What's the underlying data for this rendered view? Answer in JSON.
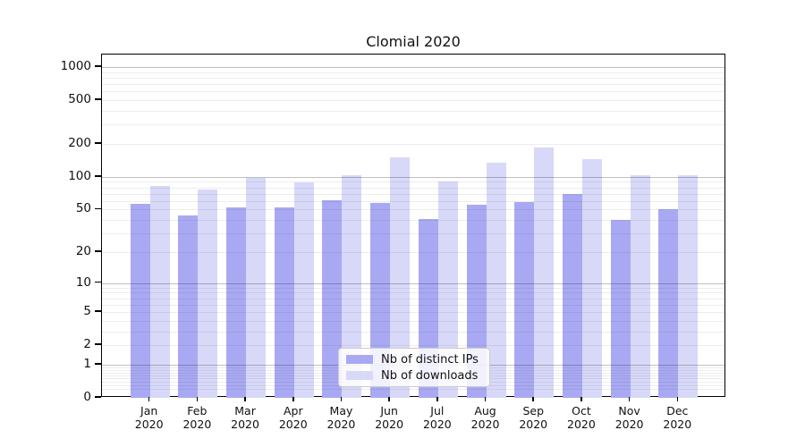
{
  "title": "Clomial 2020",
  "chart_data": {
    "type": "bar",
    "title": "Clomial 2020",
    "scale": "log1p",
    "grid": true,
    "legend_position": "lower center",
    "categories": [
      {
        "month": "Jan",
        "year": "2020"
      },
      {
        "month": "Feb",
        "year": "2020"
      },
      {
        "month": "Mar",
        "year": "2020"
      },
      {
        "month": "Apr",
        "year": "2020"
      },
      {
        "month": "May",
        "year": "2020"
      },
      {
        "month": "Jun",
        "year": "2020"
      },
      {
        "month": "Jul",
        "year": "2020"
      },
      {
        "month": "Aug",
        "year": "2020"
      },
      {
        "month": "Sep",
        "year": "2020"
      },
      {
        "month": "Oct",
        "year": "2020"
      },
      {
        "month": "Nov",
        "year": "2020"
      },
      {
        "month": "Dec",
        "year": "2020"
      }
    ],
    "series": [
      {
        "name": "Nb of distinct IPs",
        "color": "#a9a9f3",
        "values": [
          56,
          44,
          52,
          52,
          61,
          58,
          41,
          55,
          59,
          70,
          40,
          50
        ]
      },
      {
        "name": "Nb of downloads",
        "color": "#d8d8f9",
        "values": [
          82,
          76,
          98,
          89,
          104,
          151,
          90,
          136,
          186,
          144,
          104,
          104
        ]
      }
    ],
    "yticks": [
      "1000",
      "500",
      "200",
      "100",
      "50",
      "20",
      "10",
      "5",
      "2",
      "1",
      "0"
    ],
    "ytick_values": [
      1000,
      500,
      200,
      100,
      50,
      20,
      10,
      5,
      2,
      1,
      0
    ],
    "ylim": [
      0,
      1300
    ],
    "xlabel": "",
    "ylabel": ""
  }
}
